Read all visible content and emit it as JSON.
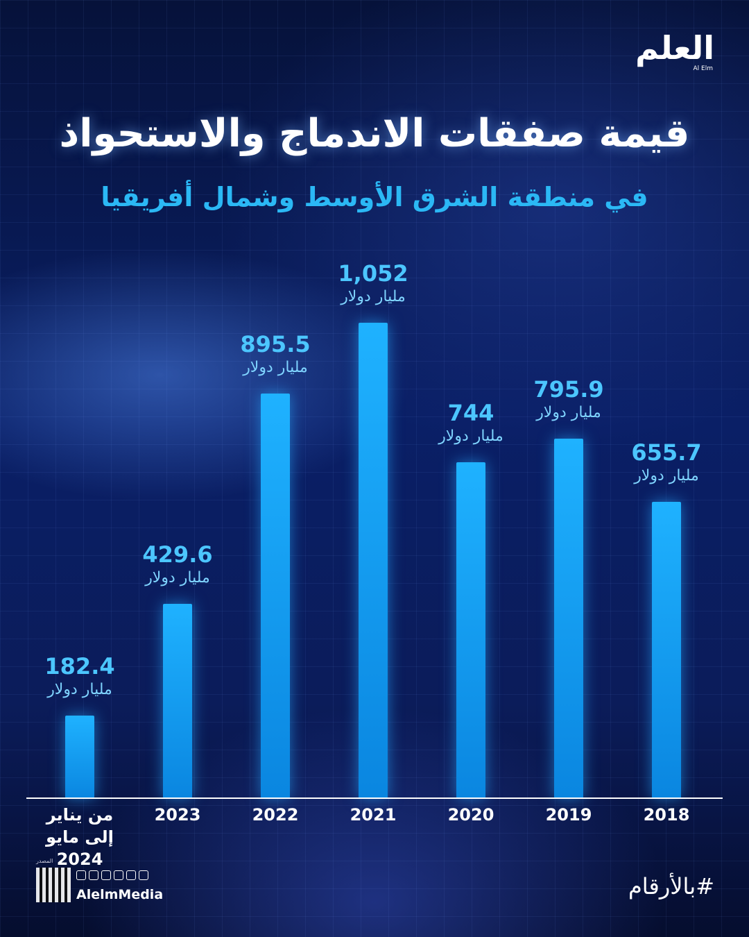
{
  "chart_data": {
    "type": "bar",
    "title": "قيمة صفقات الاندماج والاستحواذ",
    "subtitle": "في منطقة الشرق الأوسط وشمال أفريقيا",
    "categories": [
      "2018",
      "2019",
      "2020",
      "2021",
      "2022",
      "2023",
      "من يناير إلى مايو 2024"
    ],
    "values": [
      655.7,
      795.9,
      744,
      1052,
      895.5,
      429.6,
      182.4
    ],
    "value_labels": [
      "655.7",
      "795.9",
      "744",
      "1,052",
      "895.5",
      "429.6",
      "182.4"
    ],
    "value_unit": "مليار دولار",
    "color": "#1fb2ff"
  },
  "brand": {
    "logo": "العلم",
    "logo_latin": "Al Elm",
    "handle": "AlelmMedia",
    "source_label": "المصدر"
  },
  "hashtag": "#بالأرقام"
}
